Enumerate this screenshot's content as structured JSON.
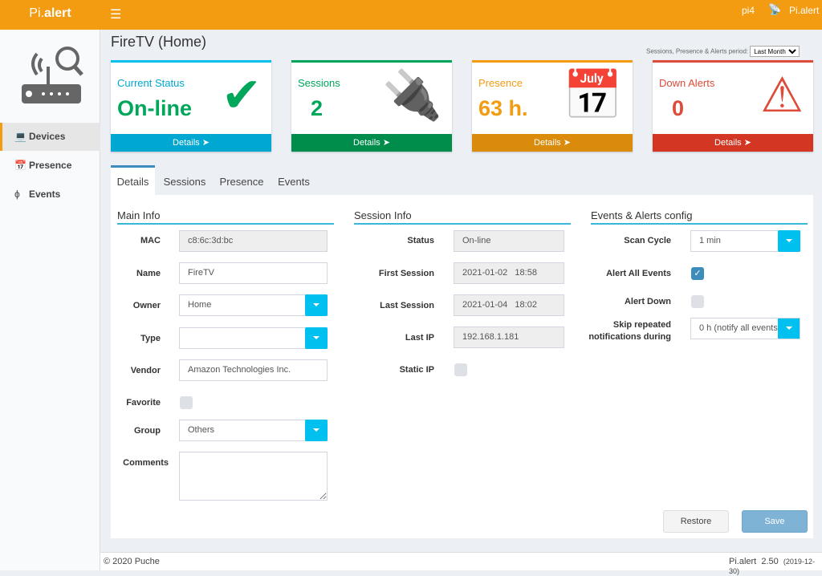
{
  "header": {
    "logo_prefix": "Pi.",
    "logo_bold": "alert",
    "menu_icon": "hamburger-icon",
    "host": "pi4",
    "app_name": "Pi.alert"
  },
  "sidebar": {
    "items": [
      {
        "label": "Devices",
        "icon": "laptop-icon",
        "active": true
      },
      {
        "label": "Presence",
        "icon": "calendar-icon"
      },
      {
        "label": "Events",
        "icon": "bolt-icon"
      }
    ]
  },
  "page": {
    "title": "FireTV (Home)",
    "period_label": "Sessions, Presence & Alerts period:",
    "period_value": "Last Month"
  },
  "cards": [
    {
      "label": "Current Status",
      "value": "On-line",
      "icon": "check-icon",
      "details": "Details",
      "color": "#00a7d0",
      "value_color": "#00a65a"
    },
    {
      "label": "Sessions",
      "value": "2",
      "icon": "plug-icon",
      "details": "Details",
      "color": "#00a65a"
    },
    {
      "label": "Presence",
      "value": "63 h.",
      "icon": "calendar-icon",
      "details": "Details",
      "color": "#f39c12"
    },
    {
      "label": "Down Alerts",
      "value": "0",
      "icon": "warning-icon",
      "details": "Details",
      "color": "#dd4b39"
    }
  ],
  "tabs": [
    "Details",
    "Sessions",
    "Presence",
    "Events"
  ],
  "main_info": {
    "title": "Main Info",
    "mac_label": "MAC",
    "mac": "c8:6c:3d:bc",
    "name_label": "Name",
    "name": "FireTV",
    "owner_label": "Owner",
    "owner": "Home",
    "type_label": "Type",
    "type": "",
    "vendor_label": "Vendor",
    "vendor": "Amazon Technologies Inc.",
    "favorite_label": "Favorite",
    "favorite": false,
    "group_label": "Group",
    "group": "Others",
    "comments_label": "Comments",
    "comments": ""
  },
  "session_info": {
    "title": "Session Info",
    "status_label": "Status",
    "status": "On-line",
    "first_label": "First Session",
    "first": "2021-01-02   18:58",
    "last_label": "Last Session",
    "last": "2021-01-04   18:02",
    "ip_label": "Last IP",
    "ip": "192.168.1.181",
    "static_label": "Static IP",
    "static": false
  },
  "alerts": {
    "title": "Events & Alerts config",
    "scan_label": "Scan Cycle",
    "scan": "1 min",
    "alert_all_label": "Alert All Events",
    "alert_all": true,
    "alert_down_label": "Alert Down",
    "alert_down": false,
    "skip_label": "Skip repeated notifications during",
    "skip": "0 h (notify all events)"
  },
  "buttons": {
    "restore": "Restore",
    "save": "Save"
  },
  "footer": {
    "copyright": "© 2020 Puche",
    "app": "Pi.alert",
    "version": "2.50",
    "date": "(2019-12-30)"
  }
}
